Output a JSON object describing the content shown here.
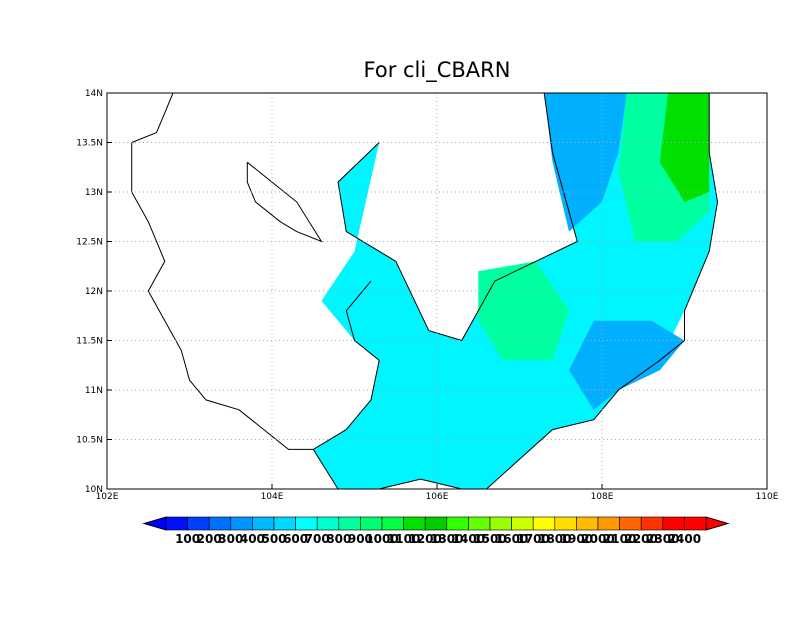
{
  "title": "For cli_CBARN",
  "map": {
    "lon_range": [
      102,
      110
    ],
    "lat_range": [
      10,
      14
    ],
    "lon_ticks": [
      {
        "value": 102,
        "label": "102E"
      },
      {
        "value": 104,
        "label": "104E"
      },
      {
        "value": 106,
        "label": "106E"
      },
      {
        "value": 108,
        "label": "108E"
      },
      {
        "value": 110,
        "label": "110E"
      }
    ],
    "lat_ticks": [
      {
        "value": 10,
        "label": "10N"
      },
      {
        "value": 10.5,
        "label": "10.5N"
      },
      {
        "value": 11,
        "label": "11N"
      },
      {
        "value": 11.5,
        "label": "11.5N"
      },
      {
        "value": 12,
        "label": "12N"
      },
      {
        "value": 12.5,
        "label": "12.5N"
      },
      {
        "value": 13,
        "label": "13N"
      },
      {
        "value": 13.5,
        "label": "13.5N"
      },
      {
        "value": 14,
        "label": "14N"
      }
    ],
    "grid": "dotted"
  },
  "colorbar": {
    "labels": [
      "100",
      "200",
      "300",
      "400",
      "500",
      "600",
      "700",
      "800",
      "900",
      "1000",
      "1100",
      "1200",
      "1300",
      "1400",
      "1500",
      "1600",
      "1700",
      "1800",
      "1900",
      "2000",
      "2100",
      "2200",
      "2300",
      "2400"
    ],
    "colors": [
      "#0010ff",
      "#0040ff",
      "#0070ff",
      "#0096ff",
      "#00b8ff",
      "#00d8ff",
      "#00ffff",
      "#00ffcf",
      "#00ff9f",
      "#00ff70",
      "#00ff40",
      "#00e000",
      "#00cc00",
      "#33ff00",
      "#66ff00",
      "#99ff00",
      "#ccff00",
      "#ffff00",
      "#ffdd00",
      "#ffbb00",
      "#ff9900",
      "#ff6600",
      "#ff3300",
      "#ff0000",
      "#ff0000"
    ],
    "under_color": "#0000ff",
    "over_color": "#ff0000"
  },
  "fields": [
    {
      "name": "land-mass",
      "color": "#00f6ff",
      "polygon": [
        [
          105.3,
          13.5
        ],
        [
          104.8,
          13.1
        ],
        [
          104.9,
          12.6
        ],
        [
          105.5,
          12.3
        ],
        [
          105.9,
          11.6
        ],
        [
          106.3,
          11.5
        ],
        [
          106.7,
          12.1
        ],
        [
          107.2,
          12.3
        ],
        [
          107.7,
          12.5
        ],
        [
          107.4,
          13.4
        ],
        [
          107.3,
          14.0
        ],
        [
          109.3,
          14.0
        ],
        [
          109.3,
          13.4
        ],
        [
          109.4,
          12.9
        ],
        [
          109.3,
          12.4
        ],
        [
          109.0,
          11.8
        ],
        [
          108.7,
          11.3
        ],
        [
          108.2,
          11.0
        ],
        [
          107.9,
          10.7
        ],
        [
          107.4,
          10.6
        ],
        [
          107.0,
          10.3
        ],
        [
          106.6,
          10.0
        ],
        [
          106.3,
          10.0
        ],
        [
          105.8,
          10.1
        ],
        [
          105.3,
          10.0
        ],
        [
          104.8,
          10.0
        ],
        [
          104.5,
          10.4
        ],
        [
          104.9,
          10.6
        ],
        [
          105.2,
          10.9
        ],
        [
          105.3,
          11.3
        ],
        [
          105.0,
          11.5
        ],
        [
          104.6,
          11.9
        ],
        [
          105.0,
          12.4
        ]
      ]
    },
    {
      "name": "low-value-patch-northeast",
      "color": "#00b0ff",
      "polygon": [
        [
          107.3,
          14.0
        ],
        [
          108.3,
          14.0
        ],
        [
          108.2,
          13.4
        ],
        [
          108.0,
          12.9
        ],
        [
          107.6,
          12.6
        ],
        [
          107.4,
          13.3
        ]
      ]
    },
    {
      "name": "low-value-patch-southeast",
      "color": "#00b0ff",
      "polygon": [
        [
          107.9,
          11.7
        ],
        [
          108.6,
          11.7
        ],
        [
          109.0,
          11.5
        ],
        [
          108.7,
          11.2
        ],
        [
          108.2,
          11.0
        ],
        [
          107.9,
          10.8
        ],
        [
          107.6,
          11.2
        ]
      ]
    },
    {
      "name": "high-value-patch-central",
      "color": "#00ffa0",
      "polygon": [
        [
          106.5,
          12.2
        ],
        [
          107.2,
          12.3
        ],
        [
          107.6,
          11.8
        ],
        [
          107.4,
          11.3
        ],
        [
          106.8,
          11.3
        ],
        [
          106.5,
          11.7
        ]
      ]
    },
    {
      "name": "high-value-patch-north",
      "color": "#00ffa0",
      "polygon": [
        [
          108.3,
          14.0
        ],
        [
          109.3,
          14.0
        ],
        [
          109.3,
          12.8
        ],
        [
          108.9,
          12.5
        ],
        [
          108.4,
          12.5
        ],
        [
          108.2,
          13.2
        ]
      ]
    },
    {
      "name": "peak-value-patch-coast",
      "color": "#00e000",
      "polygon": [
        [
          108.8,
          14.0
        ],
        [
          109.3,
          14.0
        ],
        [
          109.3,
          13.0
        ],
        [
          109.0,
          12.9
        ],
        [
          108.7,
          13.3
        ]
      ]
    }
  ],
  "coastlines": [
    {
      "name": "coastline-main",
      "points": [
        [
          102.8,
          14.0
        ],
        [
          102.7,
          13.8
        ],
        [
          102.6,
          13.6
        ],
        [
          102.3,
          13.5
        ],
        [
          102.3,
          13.0
        ],
        [
          102.5,
          12.7
        ],
        [
          102.7,
          12.3
        ],
        [
          102.5,
          12.0
        ],
        [
          102.7,
          11.7
        ],
        [
          102.9,
          11.4
        ],
        [
          103.0,
          11.1
        ],
        [
          103.2,
          10.9
        ],
        [
          103.6,
          10.8
        ],
        [
          103.9,
          10.6
        ],
        [
          104.2,
          10.4
        ],
        [
          104.5,
          10.4
        ],
        [
          104.9,
          10.6
        ],
        [
          105.2,
          10.9
        ],
        [
          105.3,
          11.3
        ],
        [
          105.0,
          11.5
        ],
        [
          104.9,
          11.8
        ],
        [
          105.2,
          12.1
        ]
      ]
    },
    {
      "name": "coastline-vietnam",
      "points": [
        [
          104.5,
          10.4
        ],
        [
          104.8,
          10.0
        ],
        [
          105.3,
          10.0
        ],
        [
          105.8,
          10.1
        ],
        [
          106.3,
          10.0
        ],
        [
          106.6,
          10.0
        ],
        [
          107.0,
          10.3
        ],
        [
          107.4,
          10.6
        ],
        [
          107.9,
          10.7
        ],
        [
          108.2,
          11.0
        ],
        [
          108.7,
          11.3
        ],
        [
          109.0,
          11.5
        ],
        [
          109.0,
          11.8
        ],
        [
          109.3,
          12.4
        ],
        [
          109.4,
          12.9
        ],
        [
          109.3,
          13.4
        ],
        [
          109.3,
          14.0
        ]
      ]
    },
    {
      "name": "coastline-inland",
      "points": [
        [
          107.3,
          14.0
        ],
        [
          107.4,
          13.4
        ],
        [
          107.7,
          12.5
        ],
        [
          107.2,
          12.3
        ],
        [
          106.7,
          12.1
        ],
        [
          106.3,
          11.5
        ],
        [
          105.9,
          11.6
        ],
        [
          105.5,
          12.3
        ],
        [
          104.9,
          12.6
        ],
        [
          104.8,
          13.1
        ],
        [
          105.3,
          13.5
        ]
      ]
    },
    {
      "name": "lake-outline",
      "points": [
        [
          103.7,
          13.3
        ],
        [
          104.0,
          13.1
        ],
        [
          104.3,
          12.9
        ],
        [
          104.6,
          12.5
        ],
        [
          104.3,
          12.6
        ],
        [
          104.1,
          12.7
        ],
        [
          103.8,
          12.9
        ],
        [
          103.7,
          13.1
        ],
        [
          103.7,
          13.3
        ]
      ]
    }
  ]
}
